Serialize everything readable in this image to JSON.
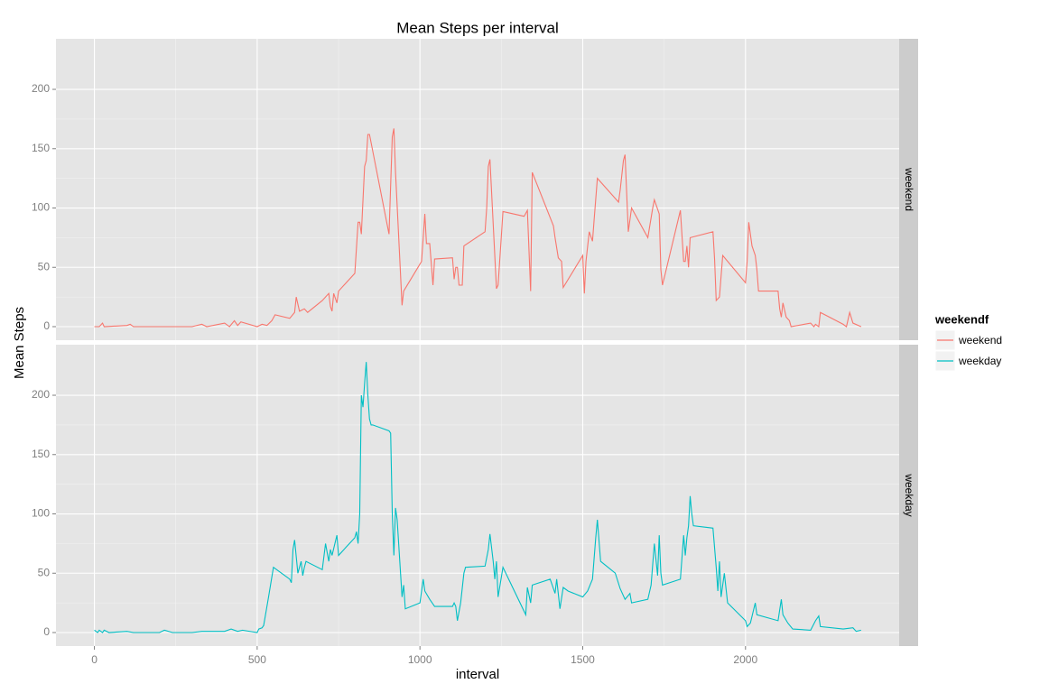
{
  "chart_data": {
    "type": "line",
    "title": "Mean Steps per interval",
    "xlabel": "interval",
    "ylabel": "Mean Steps",
    "legend_title": "weekendf",
    "xlim": [
      -118,
      2472
    ],
    "xticks": [
      0,
      500,
      1000,
      1500,
      2000
    ],
    "ylim": [
      -11.4,
      242.6
    ],
    "yticks": [
      0,
      50,
      100,
      150,
      200
    ],
    "grid": true,
    "legend": "right",
    "series": [
      {
        "name": "weekend",
        "color": "#F8766D",
        "x": [
          0,
          15,
          25,
          30,
          100,
          110,
          120,
          200,
          300,
          330,
          345,
          400,
          415,
          430,
          440,
          450,
          500,
          515,
          530,
          545,
          555,
          600,
          615,
          620,
          630,
          645,
          655,
          700,
          710,
          720,
          725,
          730,
          735,
          745,
          750,
          800,
          810,
          815,
          820,
          830,
          835,
          840,
          845,
          850,
          905,
          915,
          920,
          925,
          945,
          950,
          1005,
          1015,
          1020,
          1030,
          1040,
          1045,
          1100,
          1105,
          1110,
          1115,
          1120,
          1130,
          1135,
          1200,
          1205,
          1210,
          1215,
          1235,
          1240,
          1255,
          1320,
          1330,
          1340,
          1345,
          1410,
          1415,
          1425,
          1435,
          1440,
          1500,
          1505,
          1510,
          1520,
          1530,
          1535,
          1545,
          1610,
          1615,
          1625,
          1630,
          1640,
          1650,
          1700,
          1715,
          1720,
          1735,
          1740,
          1745,
          1800,
          1810,
          1815,
          1820,
          1825,
          1830,
          1900,
          1905,
          1910,
          1920,
          1930,
          2000,
          2005,
          2010,
          2020,
          2030,
          2035,
          2040,
          2100,
          2105,
          2110,
          2115,
          2125,
          2135,
          2140,
          2200,
          2210,
          2215,
          2225,
          2230,
          2300,
          2310,
          2320,
          2330,
          2355
        ],
        "values": [
          0,
          0,
          3,
          0,
          1,
          2,
          0,
          0,
          0,
          2,
          0,
          3,
          0,
          5,
          1,
          4,
          0,
          2,
          1,
          5,
          10,
          7,
          12,
          25,
          13,
          15,
          12,
          22,
          25,
          28,
          17,
          13,
          28,
          20,
          30,
          45,
          88,
          88,
          78,
          135,
          140,
          162,
          162,
          155,
          78,
          160,
          167,
          130,
          18,
          30,
          55,
          95,
          70,
          70,
          35,
          57,
          58,
          40,
          50,
          50,
          35,
          35,
          68,
          80,
          100,
          135,
          141,
          32,
          35,
          97,
          93,
          98,
          30,
          130,
          85,
          75,
          58,
          55,
          33,
          60,
          28,
          55,
          80,
          72,
          90,
          125,
          105,
          115,
          140,
          145,
          80,
          100,
          75,
          100,
          107,
          95,
          48,
          35,
          98,
          55,
          55,
          68,
          50,
          75,
          80,
          57,
          22,
          25,
          60,
          37,
          55,
          88,
          68,
          60,
          48,
          30,
          30,
          15,
          8,
          20,
          8,
          5,
          0,
          3,
          0,
          2,
          0,
          12,
          2,
          0,
          12,
          3,
          0
        ]
      },
      {
        "name": "weekday",
        "color": "#00BFC4",
        "x": [
          0,
          10,
          15,
          25,
          30,
          45,
          100,
          120,
          200,
          215,
          240,
          300,
          330,
          400,
          420,
          440,
          455,
          500,
          505,
          515,
          520,
          535,
          550,
          600,
          605,
          610,
          615,
          625,
          635,
          640,
          645,
          650,
          700,
          710,
          720,
          725,
          730,
          745,
          750,
          800,
          805,
          810,
          815,
          820,
          825,
          830,
          835,
          840,
          845,
          850,
          855,
          905,
          910,
          915,
          920,
          925,
          930,
          945,
          950,
          955,
          1000,
          1010,
          1015,
          1030,
          1040,
          1045,
          1100,
          1105,
          1110,
          1115,
          1125,
          1135,
          1140,
          1200,
          1210,
          1215,
          1225,
          1230,
          1235,
          1240,
          1255,
          1325,
          1330,
          1340,
          1345,
          1400,
          1415,
          1420,
          1430,
          1440,
          1455,
          1500,
          1515,
          1530,
          1540,
          1545,
          1555,
          1600,
          1615,
          1630,
          1645,
          1650,
          1700,
          1710,
          1720,
          1730,
          1735,
          1740,
          1745,
          1800,
          1810,
          1815,
          1820,
          1825,
          1830,
          1835,
          1840,
          1900,
          1910,
          1915,
          1920,
          1925,
          1935,
          1945,
          2000,
          2005,
          2015,
          2030,
          2035,
          2100,
          2110,
          2115,
          2130,
          2145,
          2200,
          2215,
          2225,
          2230,
          2300,
          2330,
          2340,
          2355
        ],
        "values": [
          2,
          0,
          2,
          0,
          2,
          0,
          1,
          0,
          0,
          2,
          0,
          0,
          1,
          1,
          3,
          1,
          2,
          0,
          3,
          4,
          6,
          30,
          55,
          45,
          42,
          70,
          78,
          50,
          60,
          48,
          55,
          60,
          53,
          75,
          60,
          70,
          65,
          82,
          65,
          80,
          85,
          75,
          100,
          200,
          190,
          210,
          228,
          200,
          180,
          175,
          175,
          170,
          168,
          100,
          65,
          105,
          95,
          30,
          40,
          20,
          25,
          45,
          35,
          28,
          24,
          22,
          22,
          25,
          22,
          10,
          25,
          50,
          55,
          56,
          70,
          83,
          60,
          45,
          60,
          30,
          55,
          15,
          38,
          25,
          40,
          45,
          33,
          45,
          20,
          38,
          35,
          30,
          35,
          45,
          80,
          95,
          60,
          50,
          37,
          28,
          33,
          25,
          28,
          40,
          75,
          48,
          82,
          50,
          40,
          45,
          82,
          65,
          80,
          90,
          115,
          100,
          90,
          88,
          55,
          35,
          60,
          30,
          50,
          25,
          10,
          5,
          8,
          25,
          15,
          10,
          28,
          15,
          8,
          3,
          2,
          10,
          14,
          5,
          3,
          4,
          1,
          2
        ]
      }
    ]
  }
}
